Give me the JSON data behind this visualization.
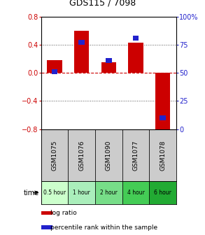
{
  "title": "GDS115 / 7098",
  "samples": [
    "GSM1075",
    "GSM1076",
    "GSM1090",
    "GSM1077",
    "GSM1078"
  ],
  "time_labels": [
    "0.5 hour",
    "1 hour",
    "2 hour",
    "4 hour",
    "6 hour"
  ],
  "time_colors": [
    "#ccffcc",
    "#aaeebb",
    "#77dd88",
    "#44cc55",
    "#22aa33"
  ],
  "log_ratios": [
    0.18,
    0.6,
    0.15,
    0.43,
    -0.85
  ],
  "percentiles": [
    51,
    77,
    61,
    81,
    10
  ],
  "ylim_left": [
    -0.8,
    0.8
  ],
  "ylim_right": [
    0,
    100
  ],
  "bar_color": "#cc0000",
  "dot_color": "#2222cc",
  "bg_color": "#ffffff",
  "zero_line_color": "#cc0000",
  "legend_bar_label": "log ratio",
  "legend_dot_label": "percentile rank within the sample",
  "time_row_label": "time"
}
